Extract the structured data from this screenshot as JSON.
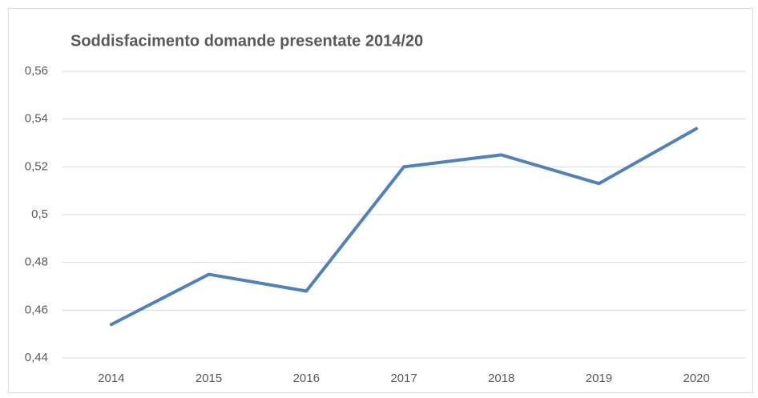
{
  "chart_data": {
    "type": "line",
    "title": "Soddisfacimento domande presentate 2014/20",
    "categories": [
      "2014",
      "2015",
      "2016",
      "2017",
      "2018",
      "2019",
      "2020"
    ],
    "series": [
      {
        "name": "Soddisfacimento",
        "color": "#4f81bd",
        "values": [
          0.454,
          0.475,
          0.468,
          0.52,
          0.525,
          0.513,
          0.536
        ]
      }
    ],
    "ylim": [
      0.44,
      0.56
    ],
    "yticks": [
      {
        "value": 0.44,
        "label": "0,44"
      },
      {
        "value": 0.46,
        "label": "0,46"
      },
      {
        "value": 0.48,
        "label": "0,48"
      },
      {
        "value": 0.5,
        "label": "0,5"
      },
      {
        "value": 0.52,
        "label": "0,52"
      },
      {
        "value": 0.54,
        "label": "0,54"
      },
      {
        "value": 0.56,
        "label": "0,56"
      }
    ],
    "grid": true
  }
}
